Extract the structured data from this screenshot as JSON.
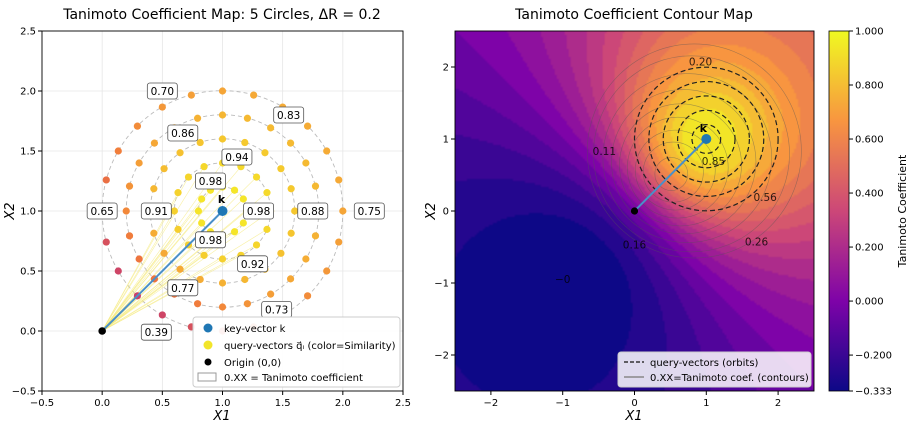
{
  "chart_data": [
    {
      "type": "scatter",
      "title": "Tanimoto Coefficient Map: 5 Circles, ΔR = 0.2",
      "xlabel": "X1",
      "ylabel": "X2",
      "xlim": [
        -0.5,
        2.5
      ],
      "ylim": [
        -0.5,
        2.5
      ],
      "xticks": [
        "−0.5",
        "0.0",
        "0.5",
        "1.0",
        "1.5",
        "2.0",
        "2.5"
      ],
      "yticks": [
        "−0.5",
        "0.0",
        "0.5",
        "1.0",
        "1.5",
        "2.0",
        "2.5"
      ],
      "grid": true,
      "key_vector": {
        "x": 1.0,
        "y": 1.0,
        "label": "k"
      },
      "origin": {
        "x": 0,
        "y": 0
      },
      "circle_radii": [
        0.2,
        0.4,
        0.6,
        0.8,
        1.0
      ],
      "points_per_circle": [
        12,
        16,
        20,
        24,
        24
      ],
      "value_labels": [
        {
          "text": "0.70",
          "x": 0.5,
          "y": 2.0
        },
        {
          "text": "0.83",
          "x": 1.55,
          "y": 1.8
        },
        {
          "text": "0.86",
          "x": 0.67,
          "y": 1.65
        },
        {
          "text": "0.94",
          "x": 1.12,
          "y": 1.45
        },
        {
          "text": "0.98",
          "x": 0.9,
          "y": 1.25
        },
        {
          "text": "0.65",
          "x": 0.0,
          "y": 1.0
        },
        {
          "text": "0.91",
          "x": 0.45,
          "y": 1.0
        },
        {
          "text": "0.98",
          "x": 1.3,
          "y": 1.0
        },
        {
          "text": "0.88",
          "x": 1.75,
          "y": 1.0
        },
        {
          "text": "0.75",
          "x": 2.22,
          "y": 1.0
        },
        {
          "text": "0.98",
          "x": 0.9,
          "y": 0.76
        },
        {
          "text": "0.92",
          "x": 1.25,
          "y": 0.56
        },
        {
          "text": "0.77",
          "x": 0.67,
          "y": 0.36
        },
        {
          "text": "0.73",
          "x": 1.45,
          "y": 0.18
        },
        {
          "text": "0.39",
          "x": 0.45,
          "y": -0.01
        }
      ],
      "legend": {
        "position": "bottom-right",
        "entries": [
          "key-vector k",
          "query-vectors q⃗ᵢ (color=Similarity)",
          "Origin (0,0)",
          "0.XX = Tanimoto coefficient"
        ]
      }
    },
    {
      "type": "heatmap",
      "title": "Tanimoto Coefficient Contour Map",
      "xlabel": "X1",
      "ylabel": "X2",
      "xlim": [
        -2.5,
        2.5
      ],
      "ylim": [
        -2.5,
        2.5
      ],
      "xticks": [
        "−2",
        "−1",
        "0",
        "1",
        "2"
      ],
      "yticks": [
        "−2",
        "−1",
        "0",
        "1",
        "2"
      ],
      "key_vector": {
        "x": 1,
        "y": 1,
        "label": "k"
      },
      "origin": {
        "x": 0,
        "y": 0
      },
      "orbit_radii": [
        0.2,
        0.4,
        0.6,
        0.8,
        1.0
      ],
      "contour_labels": [
        {
          "text": "0.20",
          "x": 0.92,
          "y": 2.02
        },
        {
          "text": "0.85",
          "x": 1.1,
          "y": 0.64
        },
        {
          "text": "0.56",
          "x": 1.82,
          "y": 0.14
        },
        {
          "text": "0.26",
          "x": 1.7,
          "y": -0.48
        },
        {
          "text": "0.11",
          "x": -0.42,
          "y": 0.78
        },
        {
          "text": "0.16",
          "x": 0.0,
          "y": -0.52
        },
        {
          "text": "−0",
          "x": -1.0,
          "y": -1.0
        }
      ],
      "colorbar": {
        "label": "Tanimoto Coefficient",
        "ticks": [
          "1.000",
          "0.800",
          "0.600",
          "0.400",
          "0.200",
          "0.000",
          "−0.200",
          "−0.333"
        ],
        "min": -0.333,
        "max": 1.0
      },
      "legend": {
        "position": "bottom-right",
        "entries": [
          "query-vectors (orbits)",
          "0.XX=Tanimoto coef. (contours)"
        ]
      }
    }
  ]
}
